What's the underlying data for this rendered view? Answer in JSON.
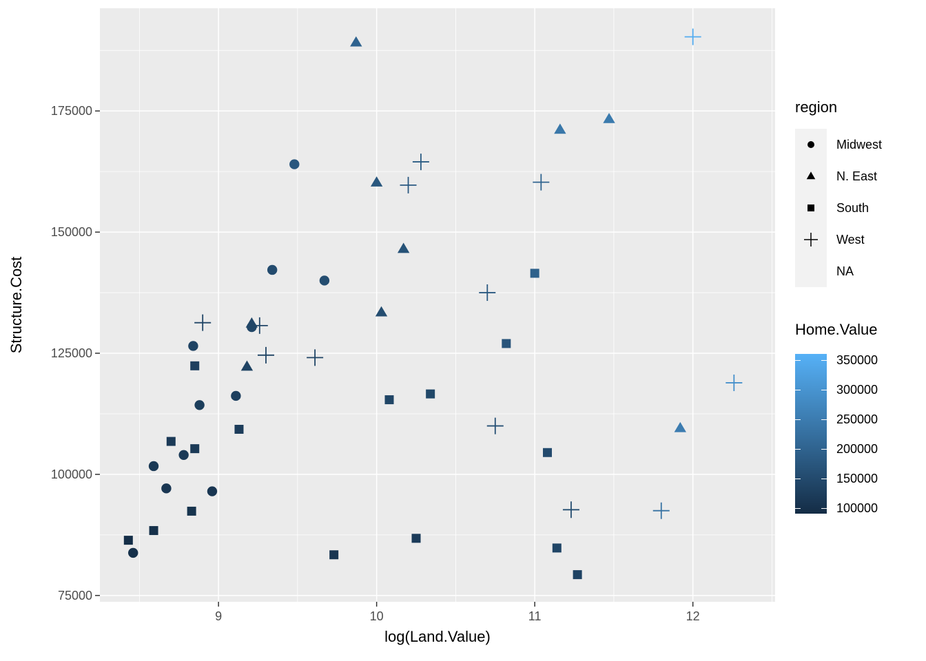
{
  "chart_data": {
    "type": "scatter",
    "title": "",
    "xlabel": "log(Land.Value)",
    "ylabel": "Structure.Cost",
    "xlim": [
      8.25,
      12.52
    ],
    "ylim": [
      73700,
      196200
    ],
    "x_ticks": [
      9,
      10,
      11,
      12
    ],
    "x_minor_ticks": [
      8.5,
      9.5,
      10.5,
      11.5,
      12.5
    ],
    "y_ticks": [
      75000,
      100000,
      125000,
      150000,
      175000
    ],
    "y_minor_ticks": [
      87500,
      112500,
      137500,
      162500,
      187500
    ],
    "grid": true,
    "legend_position": "right",
    "panel_bg": "#EBEBEB",
    "grid_color": "#FFFFFF",
    "tick_label_color": "#4D4D4D",
    "tick_mark_color": "#333333",
    "shape_legend": {
      "title": "region",
      "entries": [
        {
          "label": "Midwest",
          "shape": "circle"
        },
        {
          "label": "N. East",
          "shape": "triangle"
        },
        {
          "label": "South",
          "shape": "square"
        },
        {
          "label": "West",
          "shape": "plus"
        },
        {
          "label": "NA",
          "shape": "none"
        }
      ]
    },
    "color_legend": {
      "title": "Home.Value",
      "ticks": [
        350000,
        300000,
        250000,
        200000,
        150000,
        100000
      ],
      "bar_value_range": [
        90500,
        360500
      ],
      "color_domain": [
        88000,
        355000
      ],
      "low_color": "#132B43",
      "high_color": "#56B1F7"
    },
    "series": [
      {
        "name": "Midwest",
        "shape": "circle",
        "points": [
          [
            8.46,
            83800,
            100000
          ],
          [
            8.59,
            101700,
            115000
          ],
          [
            8.67,
            97100,
            110000
          ],
          [
            8.78,
            104000,
            118000
          ],
          [
            8.84,
            126500,
            135000
          ],
          [
            8.88,
            114300,
            125000
          ],
          [
            8.96,
            96500,
            110000
          ],
          [
            9.11,
            116200,
            128000
          ],
          [
            9.21,
            130400,
            142000
          ],
          [
            9.34,
            142200,
            152000
          ],
          [
            9.48,
            164000,
            175000
          ],
          [
            9.67,
            140000,
            155000
          ]
        ]
      },
      {
        "name": "N. East",
        "shape": "triangle",
        "points": [
          [
            9.18,
            122300,
            135000
          ],
          [
            9.21,
            131200,
            142000
          ],
          [
            9.87,
            189200,
            200000
          ],
          [
            10.0,
            160300,
            175000
          ],
          [
            10.03,
            133500,
            155000
          ],
          [
            10.17,
            146600,
            165000
          ],
          [
            11.16,
            171200,
            240000
          ],
          [
            11.47,
            173400,
            245000
          ],
          [
            11.92,
            109600,
            250000
          ]
        ]
      },
      {
        "name": "South",
        "shape": "square",
        "points": [
          [
            8.43,
            86400,
            95000
          ],
          [
            8.59,
            88400,
            100000
          ],
          [
            8.7,
            106800,
            118000
          ],
          [
            8.83,
            92400,
            105000
          ],
          [
            8.85,
            105300,
            118000
          ],
          [
            8.85,
            122400,
            130000
          ],
          [
            9.13,
            109300,
            122000
          ],
          [
            9.73,
            83400,
            110000
          ],
          [
            10.08,
            115400,
            140000
          ],
          [
            10.25,
            86800,
            120000
          ],
          [
            10.34,
            116600,
            145000
          ],
          [
            10.82,
            127000,
            170000
          ],
          [
            11.0,
            141500,
            195000
          ],
          [
            11.08,
            104500,
            150000
          ],
          [
            11.14,
            84800,
            140000
          ],
          [
            11.27,
            79300,
            135000
          ]
        ]
      },
      {
        "name": "West",
        "shape": "plus",
        "points": [
          [
            8.9,
            131300,
            140000
          ],
          [
            9.26,
            130700,
            142000
          ],
          [
            9.3,
            124600,
            138000
          ],
          [
            9.61,
            124100,
            140000
          ],
          [
            10.2,
            159700,
            180000
          ],
          [
            10.28,
            164500,
            185000
          ],
          [
            10.7,
            137500,
            180000
          ],
          [
            10.75,
            110000,
            160000
          ],
          [
            11.04,
            160300,
            200000
          ],
          [
            11.23,
            92700,
            155000
          ],
          [
            11.8,
            92500,
            230000
          ],
          [
            12.0,
            190300,
            345000
          ],
          [
            12.26,
            118900,
            290000
          ]
        ]
      }
    ]
  }
}
